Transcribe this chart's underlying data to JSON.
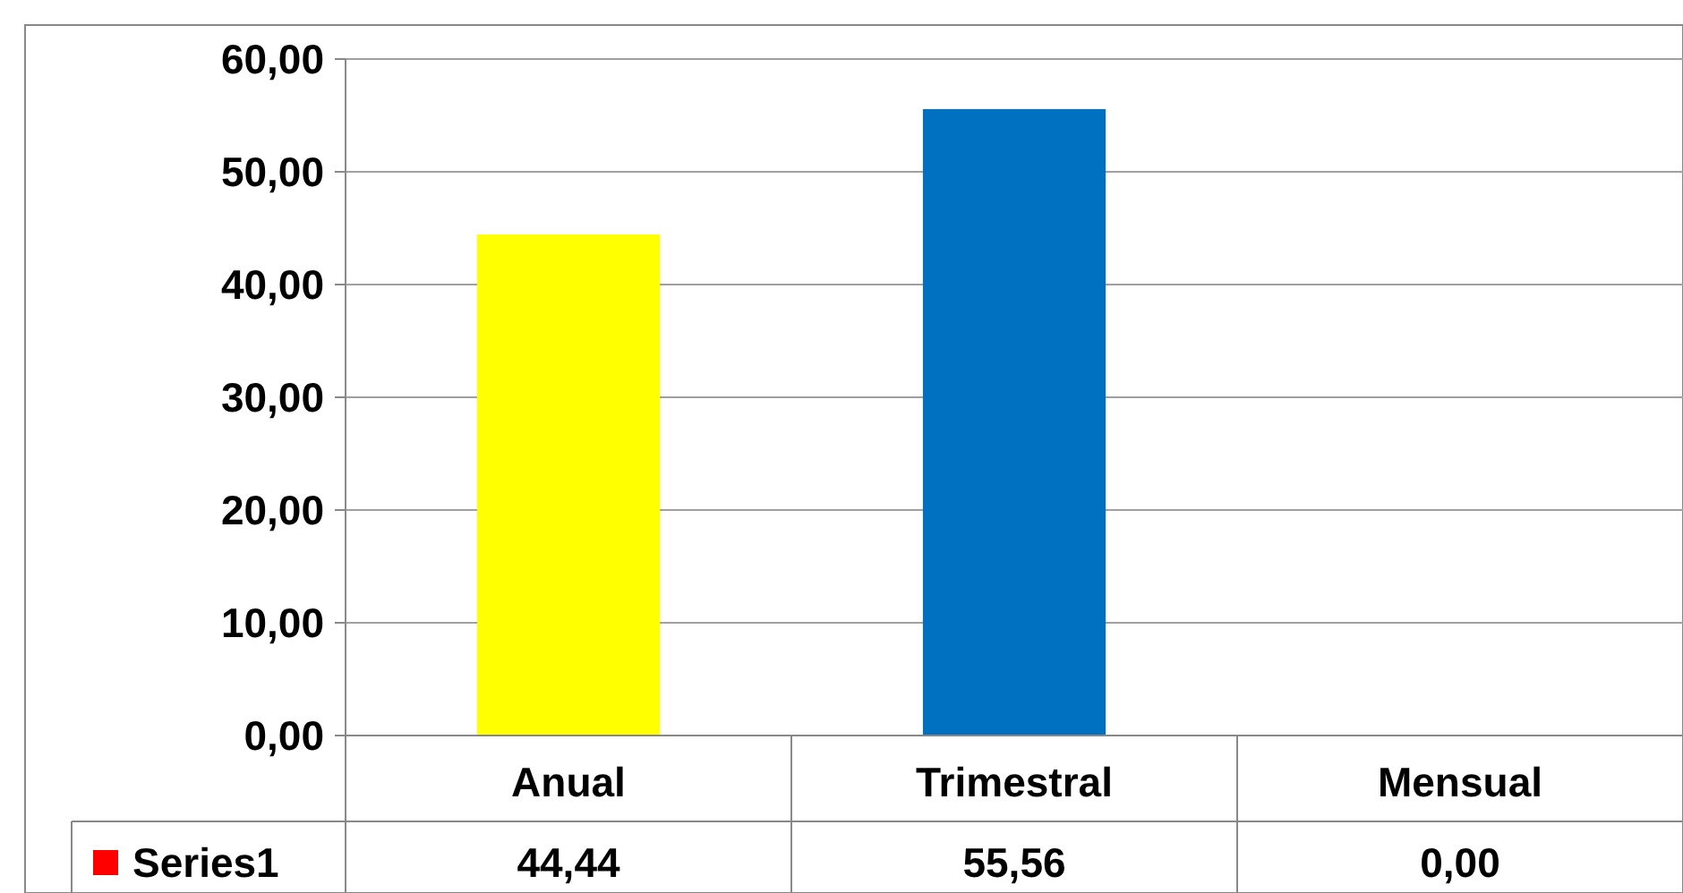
{
  "chart_data": {
    "type": "bar",
    "categories": [
      "Anual",
      "Trimestral",
      "Mensual"
    ],
    "series": [
      {
        "name": "Series1",
        "color": "#ff0000",
        "colors": [
          "#ffff00",
          "#0070c0",
          "#ff0000"
        ],
        "values": [
          44.44,
          55.56,
          0
        ],
        "value_labels": [
          "44,44",
          "55,56",
          "0,00"
        ]
      }
    ],
    "ylim": [
      0,
      60
    ],
    "yticks": [
      {
        "value": 0,
        "label": "0,00"
      },
      {
        "value": 10,
        "label": "10,00"
      },
      {
        "value": 20,
        "label": "20,00"
      },
      {
        "value": 30,
        "label": "30,00"
      },
      {
        "value": 40,
        "label": "40,00"
      },
      {
        "value": 50,
        "label": "50,00"
      },
      {
        "value": 60,
        "label": "60,00"
      }
    ],
    "grid": "y",
    "legend": "bottom left"
  }
}
